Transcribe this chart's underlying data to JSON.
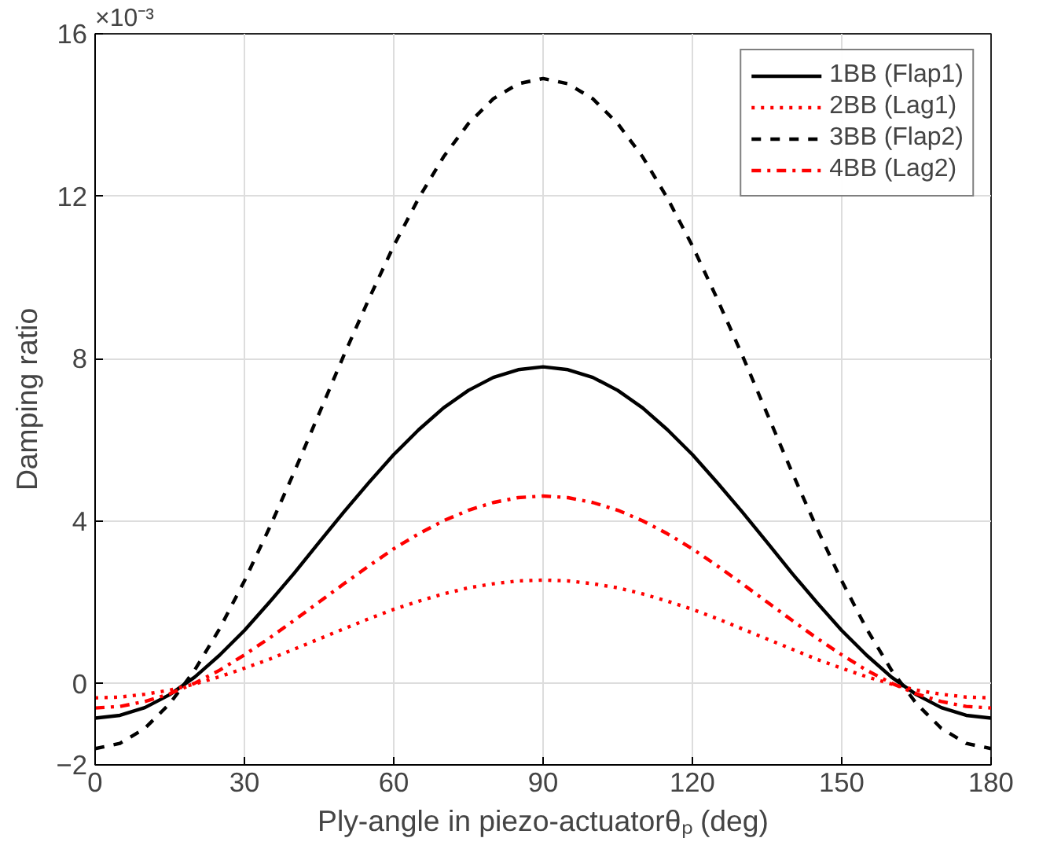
{
  "chart_data": {
    "type": "line",
    "xlabel": "Ply-angle in piezo-actuatorθₚ (deg)",
    "ylabel": "Damping ratio",
    "annotations": [
      "×10⁻³"
    ],
    "x": [
      0,
      5,
      10,
      15,
      20,
      25,
      30,
      35,
      40,
      45,
      50,
      55,
      60,
      65,
      70,
      75,
      80,
      85,
      90,
      95,
      100,
      105,
      110,
      115,
      120,
      125,
      130,
      135,
      140,
      145,
      150,
      155,
      160,
      165,
      170,
      175,
      180
    ],
    "xlim": [
      0,
      180
    ],
    "xticks": [
      0,
      30,
      60,
      90,
      120,
      150,
      180
    ],
    "ylim": [
      -2,
      16
    ],
    "yticks": [
      -2,
      0,
      4,
      8,
      12,
      16
    ],
    "grid": true,
    "legend": "top right",
    "series": [
      {
        "name": "1BB (Flap1)",
        "color": "#000000",
        "line_style": "solid",
        "values": [
          -0.85,
          -0.78,
          -0.59,
          -0.27,
          0.16,
          0.7,
          1.31,
          2.0,
          2.72,
          3.48,
          4.23,
          4.95,
          5.64,
          6.25,
          6.79,
          7.22,
          7.54,
          7.73,
          7.8,
          7.73,
          7.54,
          7.22,
          6.79,
          6.25,
          5.64,
          4.95,
          4.23,
          3.48,
          2.72,
          2.0,
          1.31,
          0.7,
          0.16,
          -0.27,
          -0.59,
          -0.78,
          -0.85
        ]
      },
      {
        "name": "2BB (Lag1)",
        "color": "#ff0000",
        "line_style": "dotted",
        "values": [
          -0.35,
          -0.33,
          -0.26,
          -0.16,
          -0.01,
          0.17,
          0.38,
          0.6,
          0.85,
          1.1,
          1.35,
          1.6,
          1.83,
          2.03,
          2.21,
          2.36,
          2.46,
          2.53,
          2.55,
          2.53,
          2.46,
          2.36,
          2.21,
          2.03,
          1.83,
          1.6,
          1.35,
          1.1,
          0.85,
          0.6,
          0.38,
          0.17,
          -0.01,
          -0.16,
          -0.26,
          -0.33,
          -0.35
        ]
      },
      {
        "name": "3BB (Flap2)",
        "color": "#000000",
        "line_style": "dashed",
        "values": [
          -1.6,
          -1.47,
          -1.1,
          -0.49,
          0.33,
          1.35,
          2.53,
          3.83,
          5.21,
          6.65,
          8.09,
          9.47,
          10.78,
          11.95,
          12.97,
          13.79,
          14.4,
          14.77,
          14.9,
          14.77,
          14.4,
          13.79,
          12.97,
          11.95,
          10.78,
          9.47,
          8.09,
          6.65,
          5.21,
          3.83,
          2.53,
          1.35,
          0.33,
          -0.49,
          -1.1,
          -1.47,
          -1.6
        ]
      },
      {
        "name": "4BB (Lag2)",
        "color": "#ff0000",
        "line_style": "dashdot",
        "values": [
          -0.6,
          -0.56,
          -0.44,
          -0.25,
          0.01,
          0.33,
          0.71,
          1.12,
          1.56,
          2.01,
          2.46,
          2.9,
          3.32,
          3.69,
          4.01,
          4.27,
          4.46,
          4.58,
          4.62,
          4.58,
          4.46,
          4.27,
          4.01,
          3.69,
          3.32,
          2.9,
          2.46,
          2.01,
          1.56,
          1.12,
          0.71,
          0.33,
          0.01,
          -0.25,
          -0.44,
          -0.56,
          -0.6
        ]
      }
    ]
  }
}
